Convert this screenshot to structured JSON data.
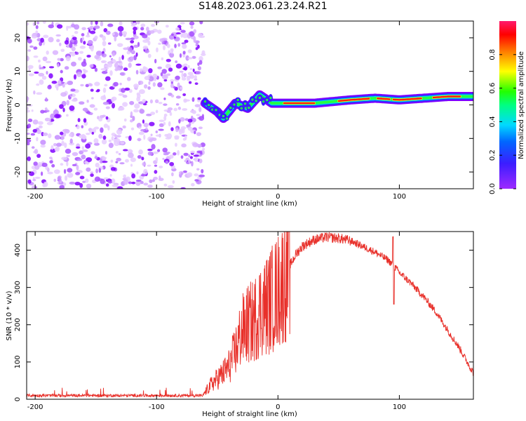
{
  "title": "S148.2023.061.23.24.R21",
  "colors": {
    "signal": "#e8302a",
    "noise": "#7f00ff",
    "frame": "#000000"
  },
  "colorbar": {
    "label": "Normalized spectral amplitude",
    "ticks": [
      "0.0",
      "0.2",
      "0.4",
      "0.6",
      "0.8"
    ],
    "range": [
      0,
      1
    ]
  },
  "chart_data": [
    {
      "type": "heatmap",
      "title": "",
      "xlabel": "Height of straight line (km)",
      "ylabel": "Frequency (Hz)",
      "xlim": [
        -207,
        161
      ],
      "ylim": [
        -25,
        25
      ],
      "xticks": [
        -200,
        -100,
        0,
        100
      ],
      "yticks": [
        -20,
        -10,
        0,
        10,
        20
      ],
      "colorscale": "rainbow (purple-blue-cyan-green-yellow-red-magenta)",
      "noise_region_x": [
        -207,
        -61
      ],
      "signal_band": [
        {
          "x": -60,
          "f": 0.5
        },
        {
          "x": -50,
          "f": -2
        },
        {
          "x": -45,
          "f": -4
        },
        {
          "x": -35,
          "f": 0.5
        },
        {
          "x": -25,
          "f": -1
        },
        {
          "x": -15,
          "f": 3
        },
        {
          "x": -5,
          "f": 0.5
        },
        {
          "x": 10,
          "f": 0.5
        },
        {
          "x": 30,
          "f": 0.5
        },
        {
          "x": 60,
          "f": 1.5
        },
        {
          "x": 80,
          "f": 2
        },
        {
          "x": 100,
          "f": 1.5
        },
        {
          "x": 120,
          "f": 2
        },
        {
          "x": 140,
          "f": 2.5
        },
        {
          "x": 161,
          "f": 2.5
        }
      ]
    },
    {
      "type": "line",
      "title": "",
      "xlabel": "Height of straight line (km)",
      "ylabel": "SNR (10 * v/v)",
      "xlim": [
        -207,
        161
      ],
      "ylim": [
        0,
        450
      ],
      "xticks": [
        -200,
        -100,
        0,
        100
      ],
      "yticks": [
        0,
        100,
        200,
        300,
        400
      ],
      "series": [
        {
          "x": [
            -207,
            -180,
            -150,
            -120,
            -90,
            -62,
            -55,
            -45,
            -40,
            -35,
            -30,
            -25,
            -20,
            -15,
            -10,
            -5,
            0,
            5,
            10,
            15,
            20,
            25,
            30,
            40,
            50,
            60,
            70,
            80,
            90,
            95,
            100,
            110,
            120,
            130,
            140,
            150,
            161
          ],
          "y": [
            10,
            10,
            10,
            10,
            10,
            10,
            40,
            70,
            90,
            130,
            180,
            200,
            210,
            240,
            250,
            270,
            290,
            320,
            360,
            390,
            410,
            420,
            428,
            435,
            432,
            425,
            410,
            395,
            375,
            360,
            340,
            310,
            275,
            235,
            185,
            135,
            70
          ]
        }
      ]
    }
  ]
}
